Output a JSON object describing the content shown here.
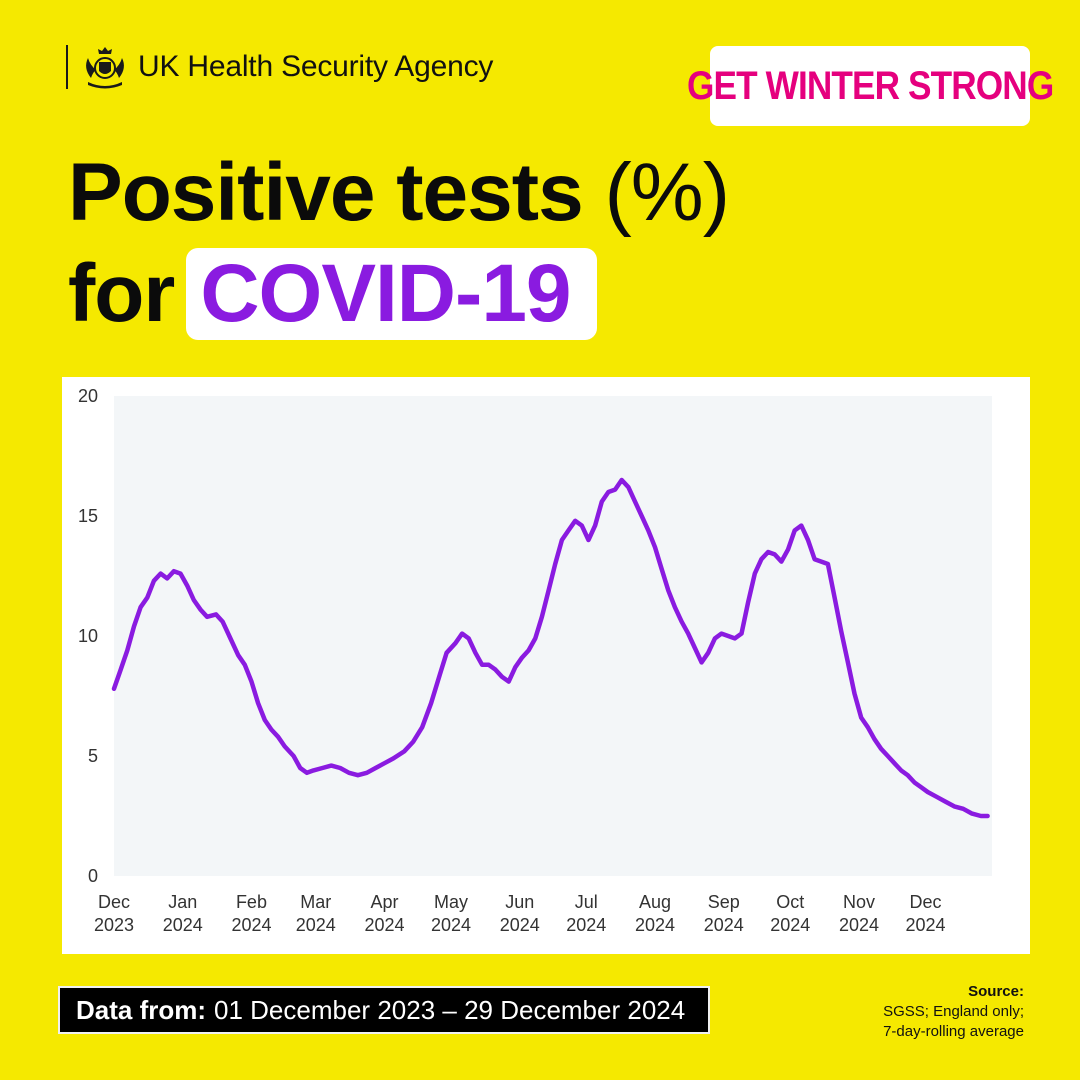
{
  "header": {
    "organisation": "UK Health Security Agency",
    "campaign_badge": "GET WINTER STRONG",
    "title_line1": "Positive tests",
    "title_paren": "(%)",
    "title_for": "for",
    "title_highlight": "COVID-19"
  },
  "footer": {
    "data_from_label": "Data from:",
    "data_from_range": "01 December 2023 – 29 December 2024",
    "source_label": "Source:",
    "source_line1": "SGSS; England only;",
    "source_line2": "7-day-rolling average"
  },
  "colors": {
    "background": "#f5e900",
    "line": "#8a1be0",
    "badge_text": "#e5007e",
    "plot_area": "#f3f6f8"
  },
  "chart_data": {
    "type": "line",
    "title": "Positive tests (%) for COVID-19",
    "xlabel": "",
    "ylabel": "",
    "ylim": [
      0,
      20
    ],
    "yticks": [
      0,
      5,
      10,
      15,
      20
    ],
    "x_tick_labels": [
      {
        "date": "2023-12-01",
        "month": "Dec",
        "year": "2023"
      },
      {
        "date": "2024-01-01",
        "month": "Jan",
        "year": "2024"
      },
      {
        "date": "2024-02-01",
        "month": "Feb",
        "year": "2024"
      },
      {
        "date": "2024-03-01",
        "month": "Mar",
        "year": "2024"
      },
      {
        "date": "2024-04-01",
        "month": "Apr",
        "year": "2024"
      },
      {
        "date": "2024-05-01",
        "month": "May",
        "year": "2024"
      },
      {
        "date": "2024-06-01",
        "month": "Jun",
        "year": "2024"
      },
      {
        "date": "2024-07-01",
        "month": "Jul",
        "year": "2024"
      },
      {
        "date": "2024-08-01",
        "month": "Aug",
        "year": "2024"
      },
      {
        "date": "2024-09-01",
        "month": "Sep",
        "year": "2024"
      },
      {
        "date": "2024-10-01",
        "month": "Oct",
        "year": "2024"
      },
      {
        "date": "2024-11-01",
        "month": "Nov",
        "year": "2024"
      },
      {
        "date": "2024-12-01",
        "month": "Dec",
        "year": "2024"
      }
    ],
    "xlim": [
      "2023-12-01",
      "2024-12-31"
    ],
    "grid": false,
    "legend": "none",
    "series": [
      {
        "points": [
          [
            "2023-12-01",
            7.8
          ],
          [
            "2023-12-04",
            8.6
          ],
          [
            "2023-12-07",
            9.4
          ],
          [
            "2023-12-10",
            10.4
          ],
          [
            "2023-12-13",
            11.2
          ],
          [
            "2023-12-16",
            11.6
          ],
          [
            "2023-12-19",
            12.3
          ],
          [
            "2023-12-22",
            12.6
          ],
          [
            "2023-12-25",
            12.4
          ],
          [
            "2023-12-28",
            12.7
          ],
          [
            "2023-12-31",
            12.6
          ],
          [
            "2024-01-03",
            12.1
          ],
          [
            "2024-01-06",
            11.5
          ],
          [
            "2024-01-09",
            11.1
          ],
          [
            "2024-01-12",
            10.8
          ],
          [
            "2024-01-16",
            10.9
          ],
          [
            "2024-01-19",
            10.6
          ],
          [
            "2024-01-22",
            10.0
          ],
          [
            "2024-01-26",
            9.2
          ],
          [
            "2024-01-29",
            8.8
          ],
          [
            "2024-02-01",
            8.1
          ],
          [
            "2024-02-04",
            7.2
          ],
          [
            "2024-02-07",
            6.5
          ],
          [
            "2024-02-10",
            6.1
          ],
          [
            "2024-02-13",
            5.8
          ],
          [
            "2024-02-16",
            5.4
          ],
          [
            "2024-02-20",
            5.0
          ],
          [
            "2024-02-23",
            4.5
          ],
          [
            "2024-02-26",
            4.3
          ],
          [
            "2024-02-29",
            4.4
          ],
          [
            "2024-03-04",
            4.5
          ],
          [
            "2024-03-08",
            4.6
          ],
          [
            "2024-03-12",
            4.5
          ],
          [
            "2024-03-16",
            4.3
          ],
          [
            "2024-03-20",
            4.2
          ],
          [
            "2024-03-24",
            4.3
          ],
          [
            "2024-03-28",
            4.5
          ],
          [
            "2024-04-01",
            4.7
          ],
          [
            "2024-04-05",
            4.9
          ],
          [
            "2024-04-10",
            5.2
          ],
          [
            "2024-04-14",
            5.6
          ],
          [
            "2024-04-18",
            6.2
          ],
          [
            "2024-04-22",
            7.2
          ],
          [
            "2024-04-26",
            8.4
          ],
          [
            "2024-04-29",
            9.3
          ],
          [
            "2024-05-03",
            9.7
          ],
          [
            "2024-05-06",
            10.1
          ],
          [
            "2024-05-09",
            9.9
          ],
          [
            "2024-05-12",
            9.3
          ],
          [
            "2024-05-15",
            8.8
          ],
          [
            "2024-05-18",
            8.8
          ],
          [
            "2024-05-21",
            8.6
          ],
          [
            "2024-05-24",
            8.3
          ],
          [
            "2024-05-27",
            8.1
          ],
          [
            "2024-05-30",
            8.7
          ],
          [
            "2024-06-02",
            9.1
          ],
          [
            "2024-06-05",
            9.4
          ],
          [
            "2024-06-08",
            9.9
          ],
          [
            "2024-06-11",
            10.8
          ],
          [
            "2024-06-14",
            11.9
          ],
          [
            "2024-06-17",
            13.0
          ],
          [
            "2024-06-20",
            14.0
          ],
          [
            "2024-06-23",
            14.4
          ],
          [
            "2024-06-26",
            14.8
          ],
          [
            "2024-06-29",
            14.6
          ],
          [
            "2024-07-02",
            14.0
          ],
          [
            "2024-07-05",
            14.6
          ],
          [
            "2024-07-08",
            15.6
          ],
          [
            "2024-07-11",
            16.0
          ],
          [
            "2024-07-14",
            16.1
          ],
          [
            "2024-07-17",
            16.5
          ],
          [
            "2024-07-20",
            16.2
          ],
          [
            "2024-07-23",
            15.6
          ],
          [
            "2024-07-26",
            15.0
          ],
          [
            "2024-07-29",
            14.4
          ],
          [
            "2024-08-01",
            13.7
          ],
          [
            "2024-08-04",
            12.8
          ],
          [
            "2024-08-07",
            11.9
          ],
          [
            "2024-08-10",
            11.2
          ],
          [
            "2024-08-13",
            10.6
          ],
          [
            "2024-08-16",
            10.1
          ],
          [
            "2024-08-19",
            9.5
          ],
          [
            "2024-08-22",
            8.9
          ],
          [
            "2024-08-25",
            9.3
          ],
          [
            "2024-08-28",
            9.9
          ],
          [
            "2024-08-31",
            10.1
          ],
          [
            "2024-09-03",
            10.0
          ],
          [
            "2024-09-06",
            9.9
          ],
          [
            "2024-09-09",
            10.1
          ],
          [
            "2024-09-12",
            11.4
          ],
          [
            "2024-09-15",
            12.6
          ],
          [
            "2024-09-18",
            13.2
          ],
          [
            "2024-09-21",
            13.5
          ],
          [
            "2024-09-24",
            13.4
          ],
          [
            "2024-09-27",
            13.1
          ],
          [
            "2024-09-30",
            13.6
          ],
          [
            "2024-10-03",
            14.4
          ],
          [
            "2024-10-06",
            14.6
          ],
          [
            "2024-10-09",
            14.0
          ],
          [
            "2024-10-12",
            13.2
          ],
          [
            "2024-10-15",
            13.1
          ],
          [
            "2024-10-18",
            13.0
          ],
          [
            "2024-10-21",
            11.6
          ],
          [
            "2024-10-24",
            10.2
          ],
          [
            "2024-10-27",
            8.9
          ],
          [
            "2024-10-30",
            7.6
          ],
          [
            "2024-11-02",
            6.6
          ],
          [
            "2024-11-05",
            6.2
          ],
          [
            "2024-11-08",
            5.7
          ],
          [
            "2024-11-11",
            5.3
          ],
          [
            "2024-11-14",
            5.0
          ],
          [
            "2024-11-17",
            4.7
          ],
          [
            "2024-11-20",
            4.4
          ],
          [
            "2024-11-23",
            4.2
          ],
          [
            "2024-11-26",
            3.9
          ],
          [
            "2024-11-29",
            3.7
          ],
          [
            "2024-12-02",
            3.5
          ],
          [
            "2024-12-06",
            3.3
          ],
          [
            "2024-12-10",
            3.1
          ],
          [
            "2024-12-14",
            2.9
          ],
          [
            "2024-12-18",
            2.8
          ],
          [
            "2024-12-22",
            2.6
          ],
          [
            "2024-12-26",
            2.5
          ],
          [
            "2024-12-29",
            2.5
          ]
        ]
      }
    ]
  }
}
